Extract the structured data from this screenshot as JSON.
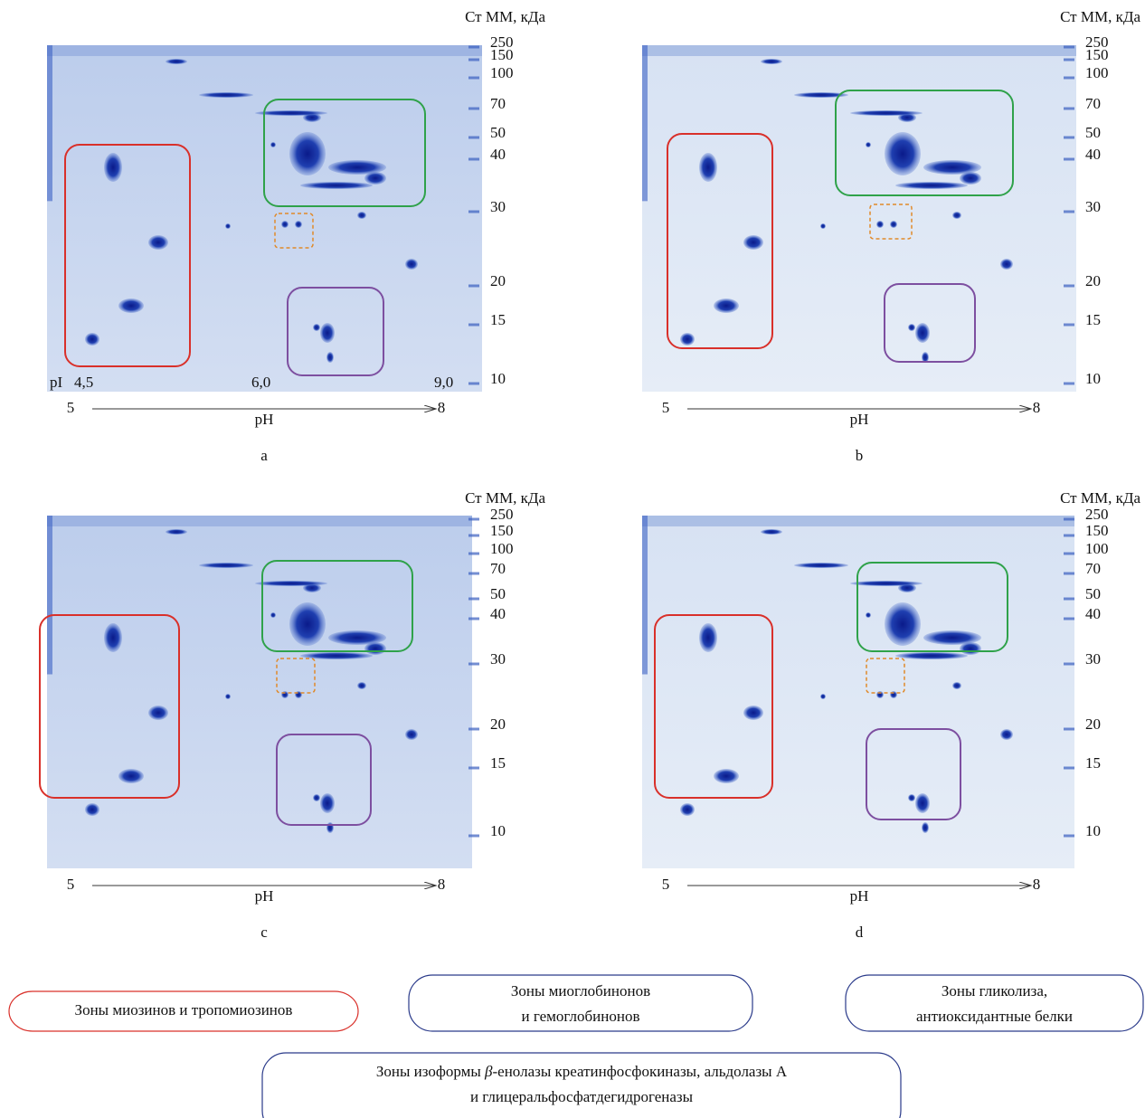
{
  "panels": [
    {
      "letter": "a",
      "mw_title": "Ст ММ, кДа",
      "mw_labels": [
        "250",
        "150",
        "100",
        "70",
        "50",
        "40",
        "30",
        "20",
        "15",
        "10"
      ],
      "pi_labels": [
        "pI",
        "4,5",
        "6,0",
        "9,0"
      ],
      "ph_start": "5",
      "ph_end": "8",
      "ph_title": "pH"
    },
    {
      "letter": "b",
      "mw_title": "Ст ММ, кДа",
      "mw_labels": [
        "250",
        "150",
        "100",
        "70",
        "50",
        "40",
        "30",
        "20",
        "15",
        "10"
      ],
      "ph_start": "5",
      "ph_end": "8",
      "ph_title": "pH"
    },
    {
      "letter": "c",
      "mw_title": "Ст ММ, кДа",
      "mw_labels": [
        "250",
        "150",
        "100",
        "70",
        "50",
        "40",
        "30",
        "20",
        "15",
        "10"
      ],
      "ph_start": "5",
      "ph_end": "8",
      "ph_title": "pH"
    },
    {
      "letter": "d",
      "mw_title": "Ст ММ, кДа",
      "mw_labels": [
        "250",
        "150",
        "100",
        "70",
        "50",
        "40",
        "30",
        "20",
        "15",
        "10"
      ],
      "ph_start": "5",
      "ph_end": "8",
      "ph_title": "pH"
    }
  ],
  "legend": [
    {
      "lines": [
        "Зоны миозинов и тропомиозинов"
      ]
    },
    {
      "lines": [
        "Зоны миоглобинонов",
        "и гемоглобинонов"
      ]
    },
    {
      "lines": [
        "Зоны гликолиза,",
        "антиоксидантные белки"
      ]
    },
    {
      "lines": [
        [
          "Зоны изоформы ",
          "β",
          "-енолазы креатинфосфокиназы, альдолазы А"
        ],
        "и глицеральфосфатдегидрогеназы"
      ]
    }
  ]
}
